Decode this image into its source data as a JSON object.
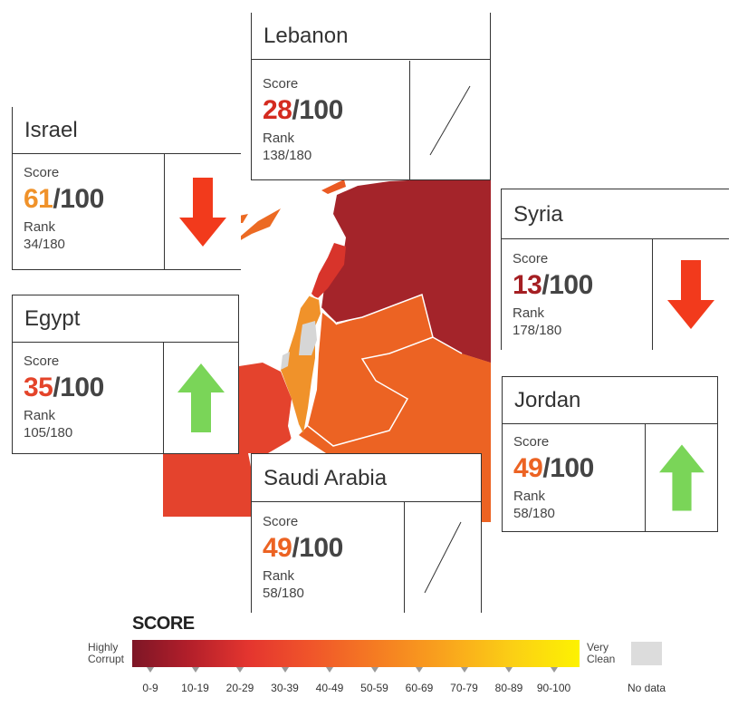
{
  "countries": {
    "lebanon": {
      "name": "Lebanon",
      "score_label": "Score",
      "score": "28",
      "score_total": "/100",
      "score_color": "#d42b1f",
      "rank_label": "Rank",
      "rank": "138/180",
      "trend": "no-change"
    },
    "israel": {
      "name": "Israel",
      "score_label": "Score",
      "score": "61",
      "score_total": "/100",
      "score_color": "#f0922a",
      "rank_label": "Rank",
      "rank": "34/180",
      "trend": "down"
    },
    "syria": {
      "name": "Syria",
      "score_label": "Score",
      "score": "13",
      "score_total": "/100",
      "score_color": "#a51f23",
      "rank_label": "Rank",
      "rank": "178/180",
      "trend": "down"
    },
    "egypt": {
      "name": "Egypt",
      "score_label": "Score",
      "score": "35",
      "score_total": "/100",
      "score_color": "#e4442a",
      "rank_label": "Rank",
      "rank": "105/180",
      "trend": "up"
    },
    "jordan": {
      "name": "Jordan",
      "score_label": "Score",
      "score": "49",
      "score_total": "/100",
      "score_color": "#ec6323",
      "rank_label": "Rank",
      "rank": "58/180",
      "trend": "up"
    },
    "saudi_arabia": {
      "name": "Saudi Arabia",
      "score_label": "Score",
      "score": "49",
      "score_total": "/100",
      "score_color": "#ec6323",
      "rank_label": "Rank",
      "rank": "58/180",
      "trend": "no-change"
    }
  },
  "legend": {
    "title": "SCORE",
    "low_label_1": "Highly",
    "low_label_2": "Corrupt",
    "high_label_1": "Very",
    "high_label_2": "Clean",
    "nodata_label": "No data",
    "ranges": [
      "0-9",
      "10-19",
      "20-29",
      "30-39",
      "40-49",
      "50-59",
      "60-69",
      "70-79",
      "80-89",
      "90-100"
    ]
  },
  "colors": {
    "down_arrow": "#f23a1c",
    "up_arrow": "#7ad558",
    "syria_fill": "#a4242a",
    "lebanon_fill": "#d8342b",
    "jordan_fill": "#ec6323",
    "saudi_fill": "#ec6323",
    "israel_fill": "#f0922a",
    "egypt_fill": "#e4432d",
    "palestine_fill": "#d6d6d6"
  }
}
